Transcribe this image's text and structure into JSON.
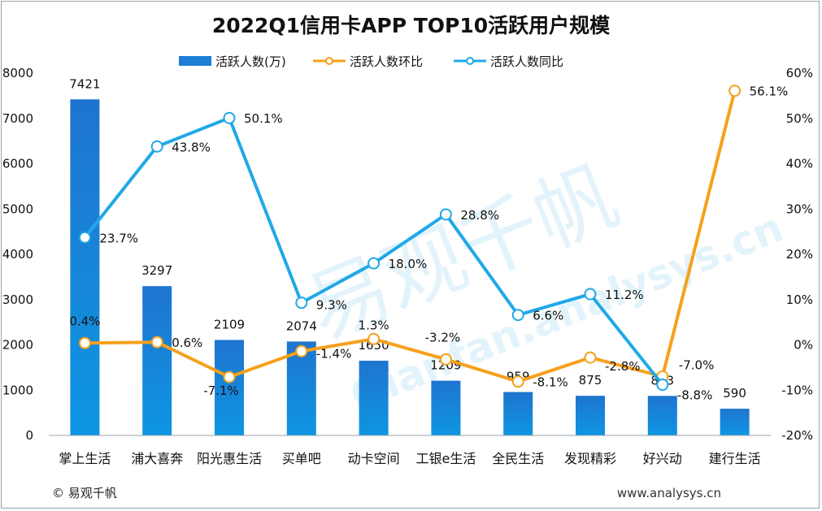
{
  "chart_data": {
    "type": "bar",
    "title": "2022Q1信用卡APP TOP10活跃用户规模",
    "categories": [
      "掌上生活",
      "浦大喜奔",
      "阳光惠生活",
      "买单吧",
      "动卡空间",
      "工银e生活",
      "全民生活",
      "发现精彩",
      "好兴动",
      "建行生活"
    ],
    "series": [
      {
        "name": "活跃人数(万)",
        "type": "bar",
        "axis": "left",
        "color": "#1c7fd4",
        "values": [
          7421,
          3297,
          2109,
          2074,
          1650,
          1209,
          959,
          875,
          873,
          590
        ]
      },
      {
        "name": "活跃人数环比",
        "type": "line",
        "axis": "right",
        "color": "#f5a11c",
        "values": [
          0.4,
          0.6,
          -7.1,
          -1.4,
          1.3,
          -3.2,
          -8.1,
          -2.8,
          -7.0,
          56.1
        ]
      },
      {
        "name": "活跃人数同比",
        "type": "line",
        "axis": "right",
        "color": "#20a8e8",
        "values": [
          23.7,
          43.8,
          50.1,
          9.3,
          18.0,
          28.8,
          6.6,
          11.2,
          -8.8,
          null
        ]
      }
    ],
    "bar_labels": [
      "7421",
      "3297",
      "2109",
      "2074",
      "1650",
      "1209",
      "959",
      "875",
      "873",
      "590"
    ],
    "mom_labels": [
      "0.4%",
      "0.6%",
      "-7.1%",
      "-1.4%",
      "1.3%",
      "-3.2%",
      "-8.1%",
      "-2.8%",
      "-7.0%",
      "56.1%"
    ],
    "yoy_labels": [
      "23.7%",
      "43.8%",
      "50.1%",
      "9.3%",
      "18.0%",
      "28.8%",
      "6.6%",
      "11.2%",
      "-8.8%",
      ""
    ],
    "y_left": {
      "ylim": [
        0,
        8000
      ],
      "ticks": [
        "0",
        "1000",
        "2000",
        "3000",
        "4000",
        "5000",
        "6000",
        "7000",
        "8000"
      ]
    },
    "y_right": {
      "ylim": [
        -20,
        60
      ],
      "ticks": [
        "-20%",
        "-10%",
        "0%",
        "10%",
        "20%",
        "30%",
        "40%",
        "50%",
        "60%"
      ]
    },
    "legend_position": "top",
    "grid": false
  },
  "footer": {
    "copyright": "© 易观千帆",
    "website": "www.analysys.cn"
  },
  "watermark": {
    "text_cn": "易观千帆",
    "text_en": "Qianfan.analysys.cn"
  }
}
